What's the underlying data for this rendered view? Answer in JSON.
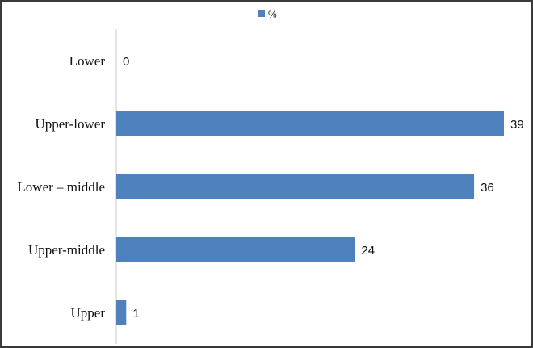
{
  "chart_data": {
    "type": "bar",
    "orientation": "horizontal",
    "categories": [
      "Lower",
      "Upper-lower",
      "Lower – middle",
      "Upper-middle",
      "Upper"
    ],
    "series": [
      {
        "name": "%",
        "values": [
          0,
          39,
          36,
          24,
          1
        ],
        "color": "#4f81bd"
      }
    ],
    "title": "",
    "xlabel": "",
    "ylabel": "",
    "xlim": [
      0,
      39
    ],
    "legend_position": "top",
    "grid": false,
    "data_labels": [
      "0",
      "39",
      "36",
      "24",
      "1"
    ]
  }
}
